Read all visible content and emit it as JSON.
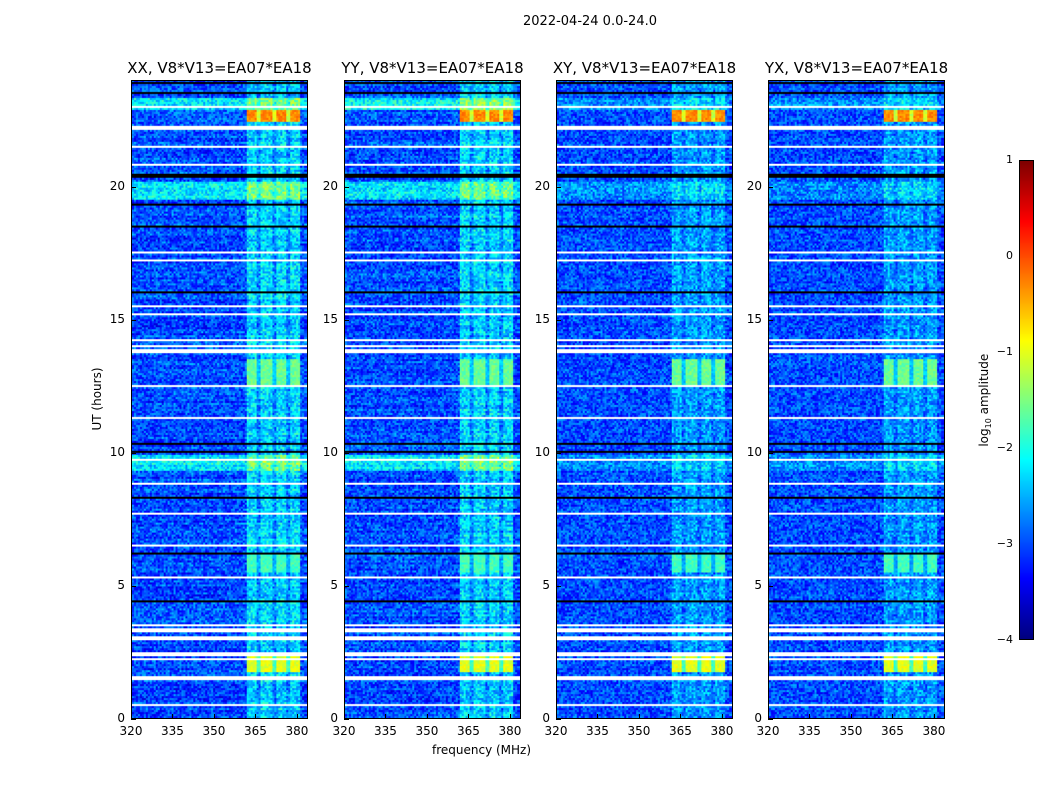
{
  "chart_data": {
    "type": "heatmap",
    "suptitle": "2022-04-24 0.0-24.0",
    "xlabel": "frequency (MHz)",
    "ylabel": "UT (hours)",
    "xlim": [
      320,
      384
    ],
    "ylim": [
      0,
      24
    ],
    "xticks": [
      "320",
      "335",
      "350",
      "365",
      "380"
    ],
    "yticks": [
      "0",
      "5",
      "10",
      "15",
      "20"
    ],
    "panels": [
      {
        "title": "XX, V8*V13=EA07*EA18",
        "rfi_level": 1.0
      },
      {
        "title": "YY, V8*V13=EA07*EA18",
        "rfi_level": 1.0
      },
      {
        "title": "XY, V8*V13=EA07*EA18",
        "rfi_level": 0.6
      },
      {
        "title": "YX, V8*V13=EA07*EA18",
        "rfi_level": 0.6
      }
    ],
    "colorbar": {
      "label_main": "log",
      "label_sub": "10",
      "label_rest": " amplitude",
      "range": [
        -4,
        1
      ],
      "ticks": [
        "1",
        "0",
        "−1",
        "−2",
        "−3",
        "−4"
      ],
      "colormap": "jet"
    },
    "background_level": -3.0,
    "active_band_mhz": [
      362,
      382
    ],
    "flagged_hours": [
      0.5,
      1.5,
      2.2,
      2.4,
      3.0,
      3.3,
      3.5,
      5.3,
      6.5,
      7.7,
      8.8,
      9.7,
      11.3,
      12.5,
      13.8,
      14.0,
      14.2,
      15.2,
      15.5,
      17.2,
      17.5,
      20.8,
      21.5,
      22.2,
      23.0
    ],
    "dark_hours": [
      4.4,
      6.2,
      8.3,
      10.0,
      10.3,
      16.0,
      18.5,
      19.3,
      20.4,
      23.5,
      23.9
    ],
    "bright_events": [
      {
        "t0": 1.7,
        "t1": 2.3,
        "level": -1.0
      },
      {
        "t0": 12.5,
        "t1": 13.5,
        "level": -1.6
      },
      {
        "t0": 22.4,
        "t1": 22.9,
        "level": -0.3
      },
      {
        "t0": 5.5,
        "t1": 6.2,
        "level": -1.8
      }
    ]
  }
}
